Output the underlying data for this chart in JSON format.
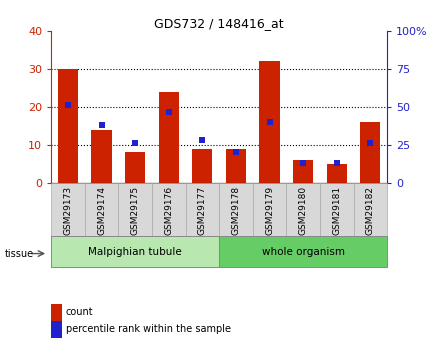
{
  "title": "GDS732 / 148416_at",
  "samples": [
    "GSM29173",
    "GSM29174",
    "GSM29175",
    "GSM29176",
    "GSM29177",
    "GSM29178",
    "GSM29179",
    "GSM29180",
    "GSM29181",
    "GSM29182"
  ],
  "counts": [
    30,
    14,
    8,
    24,
    9,
    9,
    32,
    6,
    5,
    16
  ],
  "percentiles": [
    51,
    38,
    26,
    47,
    28,
    20,
    40,
    13,
    13,
    26
  ],
  "tissue_groups": [
    {
      "label": "Malpighian tubule",
      "start": 0,
      "end": 5
    },
    {
      "label": "whole organism",
      "start": 5,
      "end": 10
    }
  ],
  "tissue_colors": [
    "#b8e8b0",
    "#66cc66"
  ],
  "left_ylim": [
    0,
    40
  ],
  "right_ylim": [
    0,
    100
  ],
  "left_yticks": [
    0,
    10,
    20,
    30,
    40
  ],
  "right_yticks": [
    0,
    25,
    50,
    75,
    100
  ],
  "right_yticklabels": [
    "0",
    "25",
    "50",
    "75",
    "100%"
  ],
  "bar_color_count": "#cc2200",
  "bar_color_percentile": "#2222cc",
  "legend_count_label": "count",
  "legend_percentile_label": "percentile rank within the sample",
  "tissue_label": "tissue",
  "plot_bg": "#ffffff",
  "tick_bg": "#d8d8d8",
  "bar_width": 0.6
}
